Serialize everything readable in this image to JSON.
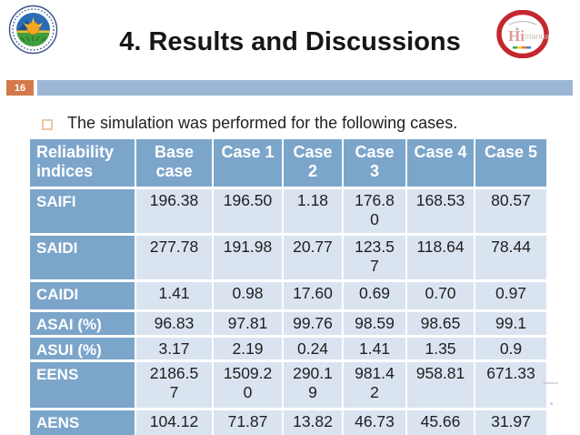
{
  "slide": {
    "title": "4. Results and Discussions",
    "page_number": "16",
    "bullet_text": "The simulation was performed for the following cases."
  },
  "logos": {
    "left_name": "university-seal-logo",
    "right_name": "red-ring-emblem-logo",
    "right_letter": "Hi"
  },
  "colors": {
    "header_blue": "#7CA5CA",
    "row_light_blue": "#DAE4F0",
    "badge_orange": "#D4794B",
    "band_blue": "#9CB7D5",
    "bullet_outline": "#EDC6A4"
  },
  "table": {
    "columns": [
      "Reliability\nindices",
      "Base\ncase",
      "Case 1",
      "Case\n2",
      "Case\n3",
      "Case 4",
      "Case 5"
    ],
    "rows": [
      {
        "label": "SAIFI",
        "values": [
          "196.38",
          "196.50",
          "1.18",
          "176.8\n0",
          "168.53",
          "80.57"
        ]
      },
      {
        "label": "SAIDI",
        "values": [
          "277.78",
          "191.98",
          "20.77",
          "123.5\n7",
          "118.64",
          "78.44"
        ]
      },
      {
        "label": "CAIDI",
        "values": [
          "1.41",
          "0.98",
          "17.60",
          "0.69",
          "0.70",
          "0.97"
        ]
      },
      {
        "label": "ASAI (%)",
        "values": [
          "96.83",
          "97.81",
          "99.76",
          "98.59",
          "98.65",
          "99.1"
        ]
      },
      {
        "label": "ASUI (%)",
        "values": [
          "3.17",
          "2.19",
          "0.24",
          "1.41",
          "1.35",
          "0.9"
        ]
      },
      {
        "label": "EENS",
        "values": [
          "2186.5\n7",
          "1509.2\n0",
          "290.1\n9",
          "981.4\n2",
          "958.81",
          "671.33"
        ]
      },
      {
        "label": "AENS",
        "values": [
          "104.12",
          "71.87",
          "13.82",
          "46.73",
          "45.66",
          "31.97"
        ]
      }
    ]
  }
}
